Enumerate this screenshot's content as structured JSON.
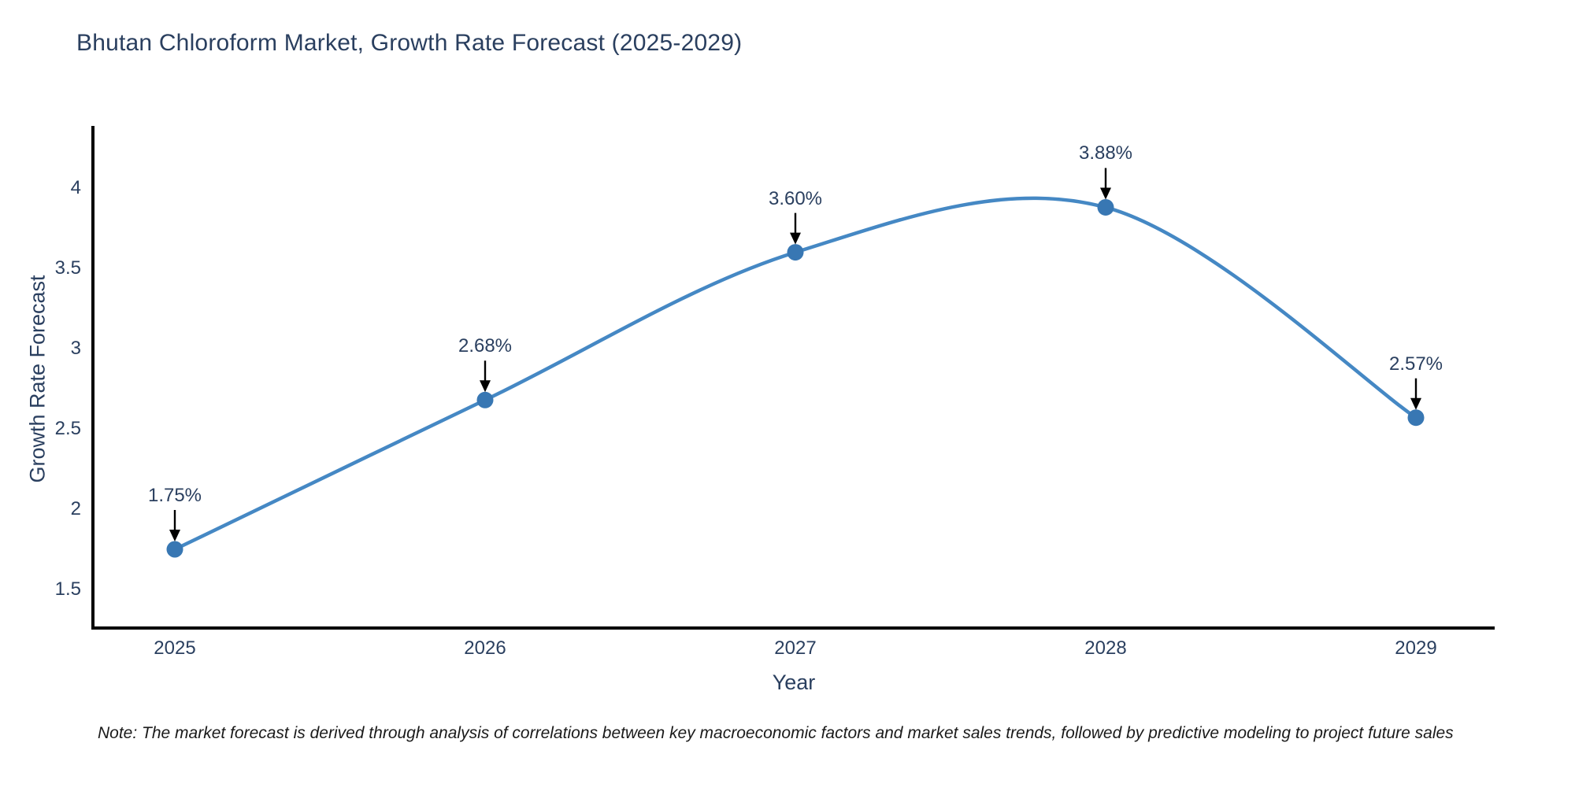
{
  "title": "Bhutan Chloroform Market, Growth Rate Forecast (2025-2029)",
  "note": "Note: The market forecast is derived through analysis of correlations between key macroeconomic factors and market sales trends, followed by predictive modeling to project future sales",
  "chart_data": {
    "type": "line",
    "line_shape": "spline",
    "title": "Bhutan Chloroform Market, Growth Rate Forecast (2025-2029)",
    "xlabel": "Year",
    "ylabel": "Growth Rate Forecast",
    "x": [
      2025,
      2026,
      2027,
      2028,
      2029
    ],
    "y": [
      1.75,
      2.68,
      3.6,
      3.88,
      2.57
    ],
    "labels": [
      "1.75%",
      "2.68%",
      "3.60%",
      "3.88%",
      "2.57%"
    ],
    "yticks": [
      1.5,
      2,
      2.5,
      3,
      3.5,
      4
    ],
    "ylim": [
      1.26,
      4.39
    ],
    "grid": false,
    "legend": "none",
    "annotations_have_arrows": true,
    "colors": {
      "line": "#4588c4",
      "marker": "#3877b3",
      "axis": "#000000",
      "text": "#2a3f5f",
      "arrow": "#000000",
      "background": "#ffffff"
    }
  }
}
